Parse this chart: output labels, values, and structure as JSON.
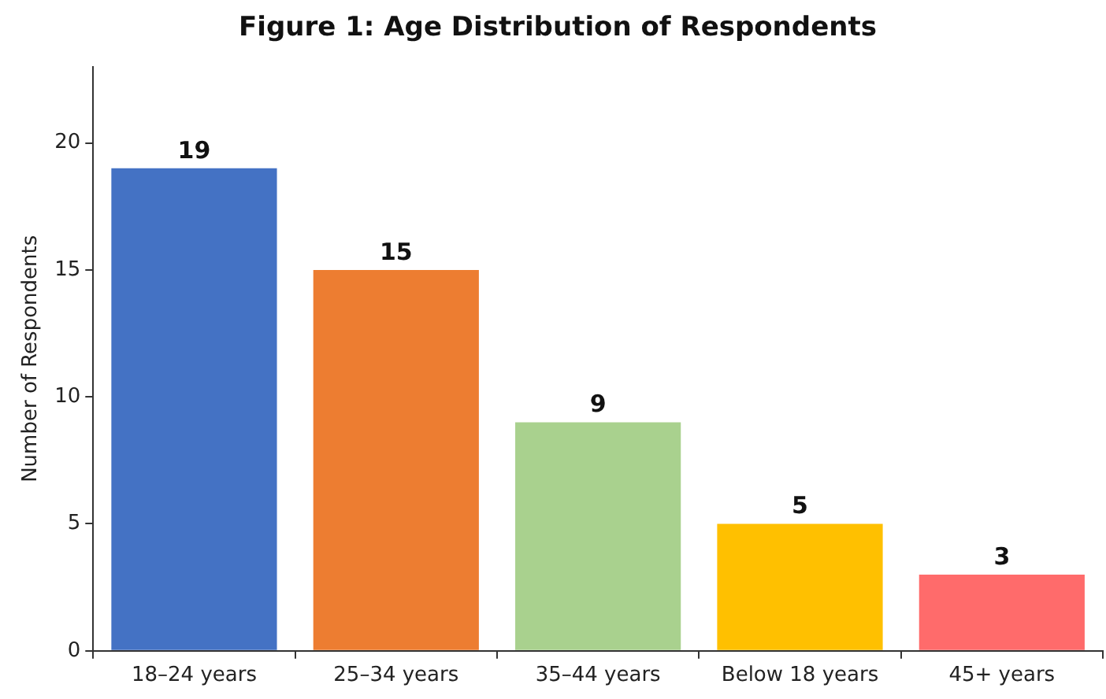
{
  "chart_data": {
    "type": "bar",
    "title": "Figure 1: Age Distribution of Respondents",
    "ylabel": "Number of Respondents",
    "categories": [
      "18–24 years",
      "25–34 years",
      "35–44 years",
      "Below 18 years",
      "45+ years"
    ],
    "values": [
      19,
      15,
      9,
      5,
      3
    ],
    "colors": [
      "#4472c4",
      "#ed7d31",
      "#a9d18e",
      "#ffc000",
      "#ff6b6b"
    ],
    "ylim": [
      0,
      23
    ],
    "yticks": [
      0,
      5,
      10,
      15,
      20
    ],
    "grid": false,
    "legend": false,
    "data_labels": true
  }
}
